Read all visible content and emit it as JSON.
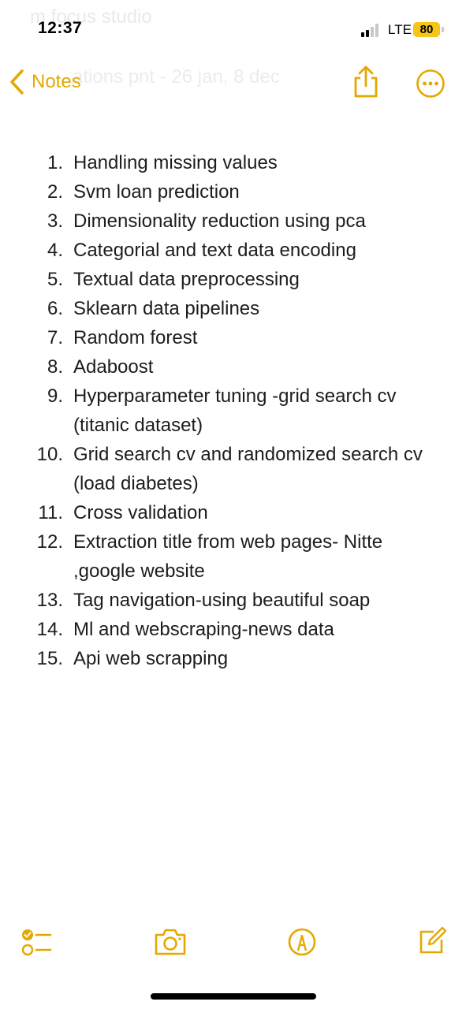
{
  "status_bar": {
    "ghost_title": "m focus studio",
    "time": "12:37",
    "network": "LTE",
    "battery": "80",
    "signal_bars_active": 2,
    "signal_bars_total": 4
  },
  "nav": {
    "back_label": "Notes",
    "ghost_subtitle": "ations pnt - 26 jan, 8 dec",
    "share_icon": "share-icon",
    "more_icon": "more-icon"
  },
  "note": {
    "items": [
      {
        "num": "1.",
        "text": "Handling missing values"
      },
      {
        "num": "2.",
        "text": "Svm loan prediction"
      },
      {
        "num": "3.",
        "text": "Dimensionality reduction using pca"
      },
      {
        "num": "4.",
        "text": "Categorial and text data encoding"
      },
      {
        "num": "5.",
        "text": "Textual data preprocessing"
      },
      {
        "num": "6.",
        "text": "Sklearn data pipelines"
      },
      {
        "num": "7.",
        "text": "Random forest"
      },
      {
        "num": "8.",
        "text": "Adaboost"
      },
      {
        "num": "9.",
        "text": "Hyperparameter tuning -grid search cv (titanic dataset)"
      },
      {
        "num": "10.",
        "text": "Grid search cv and randomized search cv (load diabetes)"
      },
      {
        "num": "11.",
        "text": "Cross validation"
      },
      {
        "num": "12.",
        "text": "Extraction title from web pages- Nitte ,google website"
      },
      {
        "num": "13.",
        "text": "Tag navigation-using beautiful soap"
      },
      {
        "num": "14.",
        "text": "Ml and webscraping-news data"
      },
      {
        "num": "15.",
        "text": "Api web scrapping"
      }
    ]
  },
  "toolbar": {
    "checklist_icon": "checklist-icon",
    "camera_icon": "camera-icon",
    "markup_icon": "markup-pen-icon",
    "compose_icon": "compose-icon"
  },
  "colors": {
    "accent": "#e4a800",
    "text": "#1c1c1e",
    "battery_fill": "#f5c518",
    "ghost": "#e9e9ea"
  }
}
